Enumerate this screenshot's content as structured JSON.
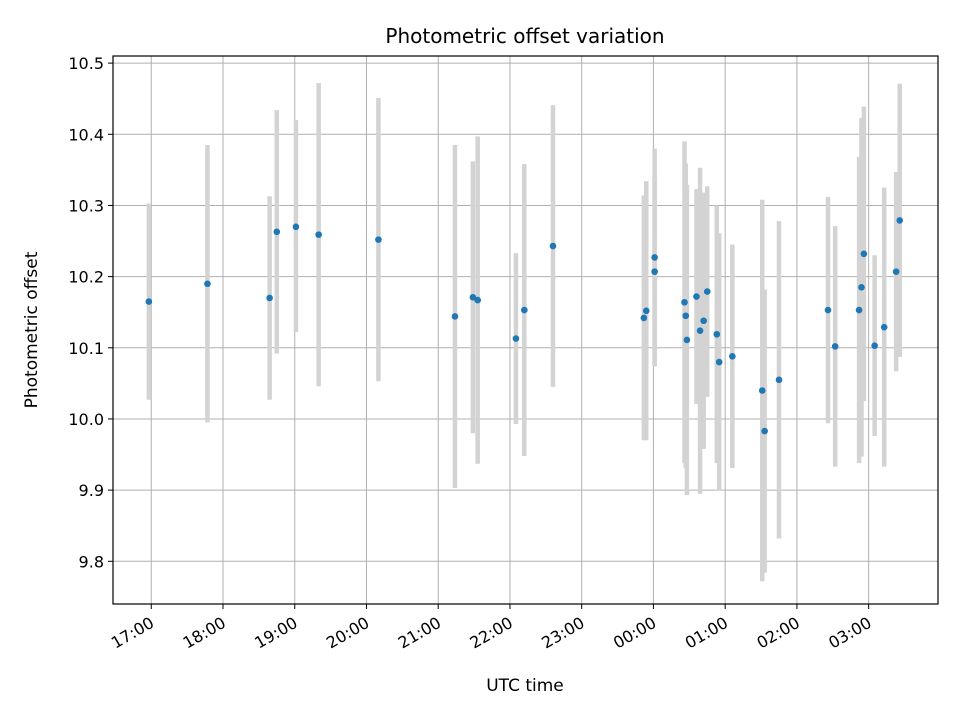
{
  "chart_data": {
    "type": "scatter",
    "title": "Photometric offset variation",
    "xlabel": "UTC time",
    "ylabel": "Photometric offset",
    "ylim": [
      9.74,
      10.51
    ],
    "y_ticks": [
      9.8,
      9.9,
      10.0,
      10.1,
      10.2,
      10.3,
      10.4,
      10.5
    ],
    "y_tick_labels": [
      "9.8",
      "9.9",
      "10.0",
      "10.1",
      "10.2",
      "10.3",
      "10.4",
      "10.5"
    ],
    "xlim": [
      "16:28",
      "03:58"
    ],
    "x_ticks": [
      "17:00",
      "18:00",
      "19:00",
      "20:00",
      "21:00",
      "22:00",
      "23:00",
      "00:00",
      "01:00",
      "02:00",
      "03:00"
    ],
    "grid": true,
    "colors": {
      "point": "#1f77b4",
      "errorbar": "#d3d3d3",
      "grid": "#b0b0b0"
    },
    "points": [
      {
        "t": "16:58",
        "y": 10.165,
        "lo": 10.027,
        "hi": 10.303
      },
      {
        "t": "17:47",
        "y": 10.19,
        "lo": 9.995,
        "hi": 10.385
      },
      {
        "t": "18:39",
        "y": 10.17,
        "lo": 10.027,
        "hi": 10.313
      },
      {
        "t": "18:45",
        "y": 10.263,
        "lo": 10.092,
        "hi": 10.434
      },
      {
        "t": "19:01",
        "y": 10.27,
        "lo": 10.122,
        "hi": 10.42
      },
      {
        "t": "19:20",
        "y": 10.259,
        "lo": 10.046,
        "hi": 10.472
      },
      {
        "t": "20:10",
        "y": 10.252,
        "lo": 10.053,
        "hi": 10.451
      },
      {
        "t": "21:14",
        "y": 10.144,
        "lo": 9.903,
        "hi": 10.385
      },
      {
        "t": "21:29",
        "y": 10.171,
        "lo": 9.98,
        "hi": 10.362
      },
      {
        "t": "21:33",
        "y": 10.167,
        "lo": 9.937,
        "hi": 10.397
      },
      {
        "t": "22:05",
        "y": 10.113,
        "lo": 9.993,
        "hi": 10.233
      },
      {
        "t": "22:12",
        "y": 10.153,
        "lo": 9.948,
        "hi": 10.358
      },
      {
        "t": "22:36",
        "y": 10.243,
        "lo": 10.045,
        "hi": 10.441
      },
      {
        "t": "23:52",
        "y": 10.142,
        "lo": 9.97,
        "hi": 10.314
      },
      {
        "t": "23:54",
        "y": 10.152,
        "lo": 9.97,
        "hi": 10.334
      },
      {
        "t": "00:01",
        "y": 10.227,
        "lo": 10.074,
        "hi": 10.38
      },
      {
        "t": "00:01",
        "y": 10.207,
        "lo": 10.074,
        "hi": 10.34
      },
      {
        "t": "00:26",
        "y": 10.164,
        "lo": 9.938,
        "hi": 10.39
      },
      {
        "t": "00:27",
        "y": 10.145,
        "lo": 9.931,
        "hi": 10.359
      },
      {
        "t": "00:28",
        "y": 10.111,
        "lo": 9.893,
        "hi": 10.329
      },
      {
        "t": "00:36",
        "y": 10.172,
        "lo": 10.021,
        "hi": 10.323
      },
      {
        "t": "00:39",
        "y": 10.124,
        "lo": 9.895,
        "hi": 10.353
      },
      {
        "t": "00:42",
        "y": 10.138,
        "lo": 9.958,
        "hi": 10.318
      },
      {
        "t": "00:45",
        "y": 10.179,
        "lo": 10.031,
        "hi": 10.327
      },
      {
        "t": "00:53",
        "y": 10.119,
        "lo": 9.938,
        "hi": 10.3
      },
      {
        "t": "00:55",
        "y": 10.08,
        "lo": 9.899,
        "hi": 10.261
      },
      {
        "t": "01:06",
        "y": 10.088,
        "lo": 9.931,
        "hi": 10.245
      },
      {
        "t": "01:31",
        "y": 10.04,
        "lo": 9.772,
        "hi": 10.308
      },
      {
        "t": "01:33",
        "y": 9.983,
        "lo": 9.784,
        "hi": 10.182
      },
      {
        "t": "01:45",
        "y": 10.055,
        "lo": 9.832,
        "hi": 10.278
      },
      {
        "t": "02:26",
        "y": 10.153,
        "lo": 9.994,
        "hi": 10.312
      },
      {
        "t": "02:32",
        "y": 10.102,
        "lo": 9.933,
        "hi": 10.271
      },
      {
        "t": "02:52",
        "y": 10.153,
        "lo": 9.938,
        "hi": 10.368
      },
      {
        "t": "02:54",
        "y": 10.185,
        "lo": 9.947,
        "hi": 10.423
      },
      {
        "t": "02:56",
        "y": 10.232,
        "lo": 10.025,
        "hi": 10.439
      },
      {
        "t": "03:05",
        "y": 10.103,
        "lo": 9.976,
        "hi": 10.23
      },
      {
        "t": "03:13",
        "y": 10.129,
        "lo": 9.933,
        "hi": 10.325
      },
      {
        "t": "03:23",
        "y": 10.207,
        "lo": 10.067,
        "hi": 10.347
      },
      {
        "t": "03:26",
        "y": 10.279,
        "lo": 10.087,
        "hi": 10.471
      }
    ]
  }
}
